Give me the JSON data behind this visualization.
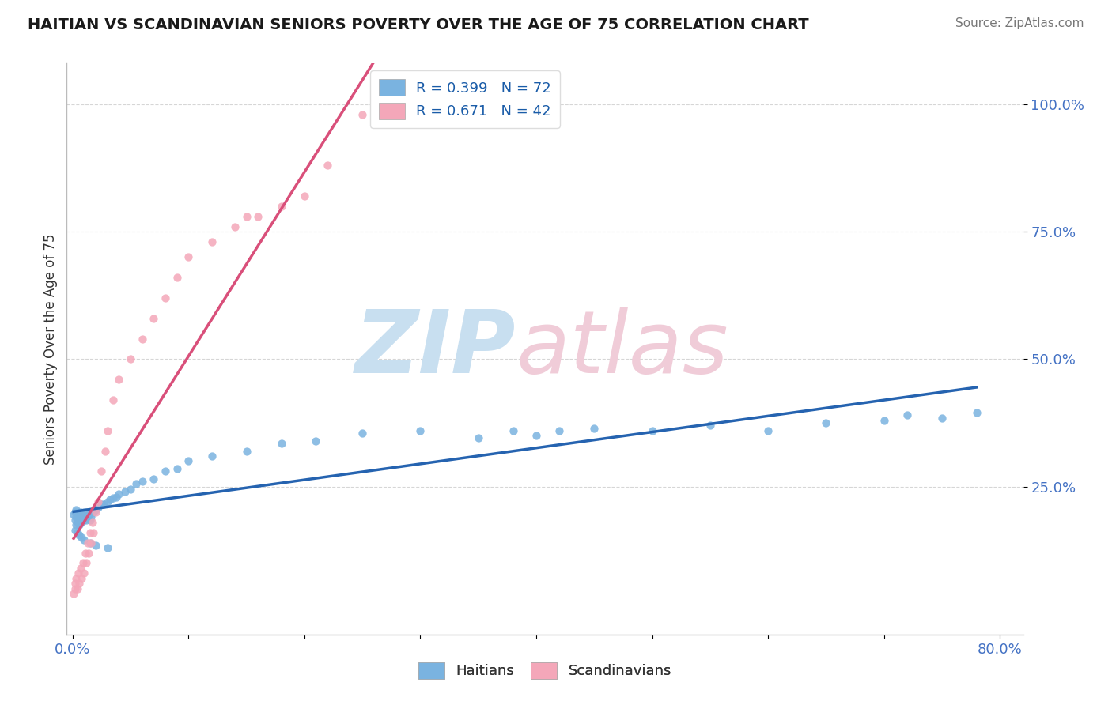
{
  "title": "HAITIAN VS SCANDINAVIAN SENIORS POVERTY OVER THE AGE OF 75 CORRELATION CHART",
  "source": "Source: ZipAtlas.com",
  "ylabel": "Seniors Poverty Over the Age of 75",
  "haitian_color": "#7ab3e0",
  "scandinavian_color": "#f4a7b9",
  "haitian_line_color": "#2563b0",
  "scandinavian_line_color": "#d94f7a",
  "R_haitian": 0.399,
  "N_haitian": 72,
  "R_scandinavian": 0.671,
  "N_scandinavian": 42,
  "xlim": [
    -0.005,
    0.82
  ],
  "ylim": [
    -0.04,
    1.08
  ],
  "xtick_pos": [
    0.0,
    0.1,
    0.2,
    0.3,
    0.4,
    0.5,
    0.6,
    0.7,
    0.8
  ],
  "xticklabels": [
    "0.0%",
    "",
    "",
    "",
    "",
    "",
    "",
    "",
    "80.0%"
  ],
  "ytick_pos": [
    0.25,
    0.5,
    0.75,
    1.0
  ],
  "ytick_labels": [
    "25.0%",
    "50.0%",
    "75.0%",
    "100.0%"
  ],
  "haitian_x": [
    0.001,
    0.002,
    0.002,
    0.003,
    0.003,
    0.003,
    0.004,
    0.004,
    0.005,
    0.005,
    0.006,
    0.006,
    0.007,
    0.007,
    0.008,
    0.008,
    0.009,
    0.01,
    0.01,
    0.011,
    0.012,
    0.012,
    0.013,
    0.014,
    0.015,
    0.015,
    0.016,
    0.018,
    0.02,
    0.022,
    0.025,
    0.027,
    0.03,
    0.032,
    0.035,
    0.038,
    0.04,
    0.045,
    0.05,
    0.055,
    0.06,
    0.07,
    0.08,
    0.09,
    0.1,
    0.12,
    0.15,
    0.18,
    0.21,
    0.25,
    0.3,
    0.35,
    0.38,
    0.4,
    0.42,
    0.45,
    0.5,
    0.55,
    0.6,
    0.65,
    0.7,
    0.72,
    0.75,
    0.78,
    0.002,
    0.004,
    0.006,
    0.008,
    0.01,
    0.015,
    0.02,
    0.03
  ],
  "haitian_y": [
    0.195,
    0.185,
    0.2,
    0.175,
    0.19,
    0.205,
    0.18,
    0.195,
    0.185,
    0.2,
    0.175,
    0.19,
    0.185,
    0.2,
    0.18,
    0.195,
    0.19,
    0.185,
    0.2,
    0.195,
    0.185,
    0.2,
    0.19,
    0.195,
    0.185,
    0.2,
    0.19,
    0.2,
    0.205,
    0.21,
    0.215,
    0.215,
    0.22,
    0.225,
    0.228,
    0.23,
    0.235,
    0.24,
    0.245,
    0.255,
    0.26,
    0.265,
    0.28,
    0.285,
    0.3,
    0.31,
    0.32,
    0.335,
    0.34,
    0.355,
    0.36,
    0.345,
    0.36,
    0.35,
    0.36,
    0.365,
    0.36,
    0.37,
    0.36,
    0.375,
    0.38,
    0.39,
    0.385,
    0.395,
    0.165,
    0.16,
    0.155,
    0.15,
    0.145,
    0.14,
    0.135,
    0.13
  ],
  "scandinavian_x": [
    0.001,
    0.002,
    0.002,
    0.003,
    0.004,
    0.005,
    0.006,
    0.007,
    0.008,
    0.009,
    0.01,
    0.011,
    0.012,
    0.013,
    0.014,
    0.015,
    0.016,
    0.017,
    0.018,
    0.02,
    0.022,
    0.025,
    0.028,
    0.03,
    0.035,
    0.04,
    0.05,
    0.06,
    0.07,
    0.08,
    0.09,
    0.1,
    0.12,
    0.14,
    0.15,
    0.16,
    0.18,
    0.2,
    0.22,
    0.25,
    0.28,
    0.3
  ],
  "scandinavian_y": [
    0.04,
    0.05,
    0.06,
    0.07,
    0.05,
    0.08,
    0.06,
    0.09,
    0.07,
    0.1,
    0.08,
    0.12,
    0.1,
    0.14,
    0.12,
    0.16,
    0.14,
    0.18,
    0.16,
    0.2,
    0.22,
    0.28,
    0.32,
    0.36,
    0.42,
    0.46,
    0.5,
    0.54,
    0.58,
    0.62,
    0.66,
    0.7,
    0.73,
    0.76,
    0.78,
    0.78,
    0.8,
    0.82,
    0.88,
    0.98,
    1.0,
    1.01
  ]
}
